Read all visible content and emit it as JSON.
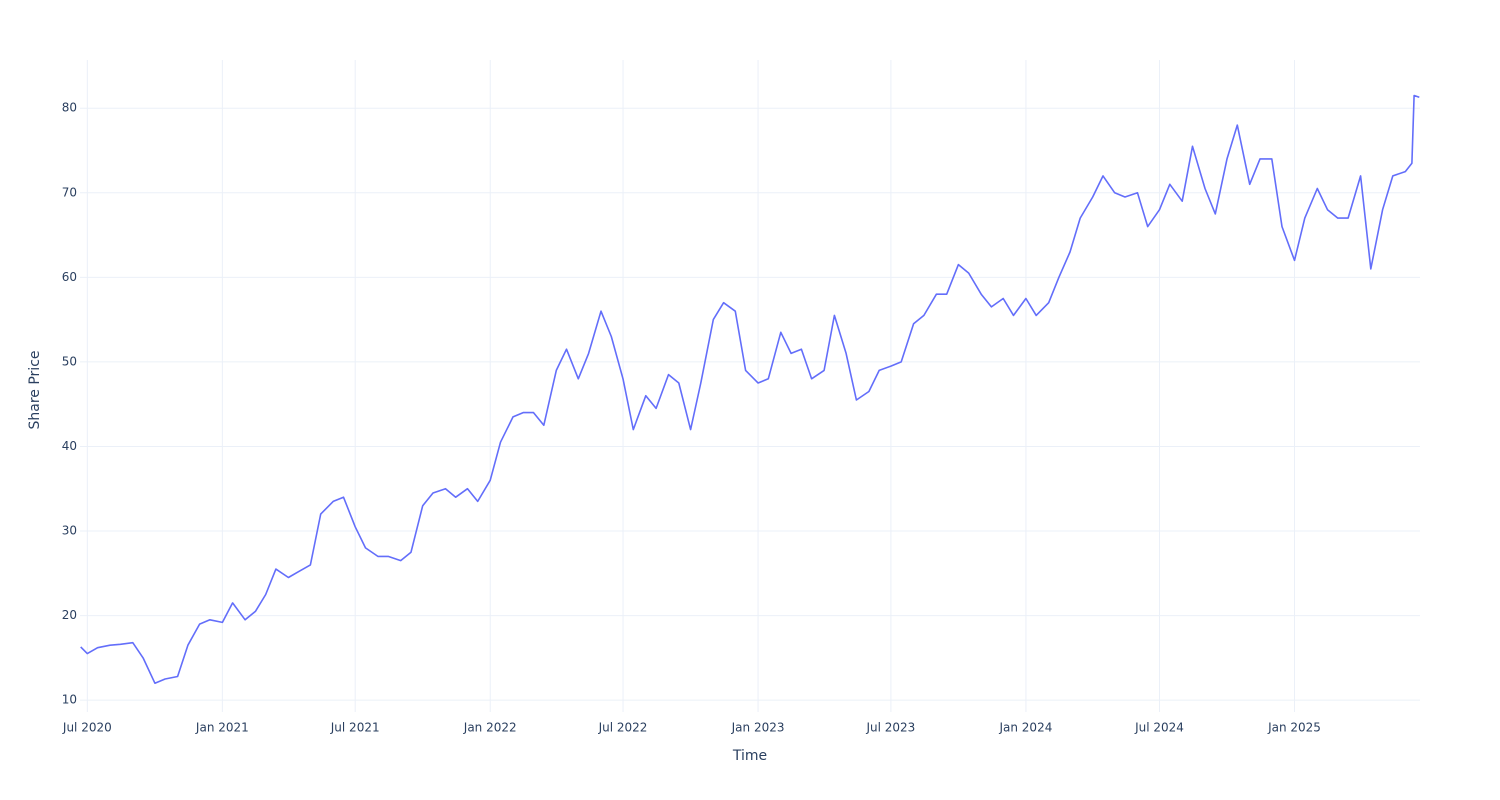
{
  "chart_data": {
    "type": "line",
    "x_label": "Time",
    "y_label": "Share Price",
    "x": [
      "2020-06-22",
      "2020-07-01",
      "2020-07-15",
      "2020-08-01",
      "2020-08-15",
      "2020-09-01",
      "2020-09-15",
      "2020-10-01",
      "2020-10-15",
      "2020-11-01",
      "2020-11-15",
      "2020-12-01",
      "2020-12-15",
      "2021-01-01",
      "2021-01-15",
      "2021-02-01",
      "2021-02-15",
      "2021-03-01",
      "2021-03-15",
      "2021-04-01",
      "2021-04-15",
      "2021-05-01",
      "2021-05-15",
      "2021-06-01",
      "2021-06-15",
      "2021-07-01",
      "2021-07-15",
      "2021-08-01",
      "2021-08-15",
      "2021-09-01",
      "2021-09-15",
      "2021-10-01",
      "2021-10-15",
      "2021-11-01",
      "2021-11-15",
      "2021-12-01",
      "2021-12-15",
      "2022-01-01",
      "2022-01-15",
      "2022-02-01",
      "2022-02-15",
      "2022-03-01",
      "2022-03-15",
      "2022-04-01",
      "2022-04-15",
      "2022-05-01",
      "2022-05-15",
      "2022-06-01",
      "2022-06-15",
      "2022-07-01",
      "2022-07-15",
      "2022-08-01",
      "2022-08-15",
      "2022-09-01",
      "2022-09-15",
      "2022-10-01",
      "2022-10-15",
      "2022-11-01",
      "2022-11-15",
      "2022-12-01",
      "2022-12-15",
      "2023-01-01",
      "2023-01-15",
      "2023-02-01",
      "2023-02-15",
      "2023-03-01",
      "2023-03-15",
      "2023-04-01",
      "2023-04-15",
      "2023-05-01",
      "2023-05-15",
      "2023-06-01",
      "2023-06-15",
      "2023-07-01",
      "2023-07-15",
      "2023-08-01",
      "2023-08-15",
      "2023-09-01",
      "2023-09-15",
      "2023-10-01",
      "2023-10-15",
      "2023-11-01",
      "2023-11-15",
      "2023-12-01",
      "2023-12-15",
      "2024-01-01",
      "2024-01-15",
      "2024-02-01",
      "2024-02-15",
      "2024-03-01",
      "2024-03-15",
      "2024-04-01",
      "2024-04-15",
      "2024-05-01",
      "2024-05-15",
      "2024-06-01",
      "2024-06-15",
      "2024-07-01",
      "2024-07-15",
      "2024-08-01",
      "2024-08-15",
      "2024-09-01",
      "2024-09-15",
      "2024-10-01",
      "2024-10-15",
      "2024-11-01",
      "2024-11-15",
      "2024-12-01",
      "2024-12-15",
      "2025-01-01",
      "2025-01-15",
      "2025-02-01",
      "2025-02-15",
      "2025-03-01",
      "2025-03-15",
      "2025-04-01",
      "2025-04-15",
      "2025-05-01",
      "2025-05-15",
      "2025-06-01",
      "2025-06-10",
      "2025-06-13",
      "2025-06-20"
    ],
    "values": [
      16.3,
      15.5,
      16.2,
      16.5,
      16.6,
      16.8,
      15,
      12,
      12.5,
      12.8,
      16.5,
      19,
      19.5,
      19.2,
      21.5,
      19.5,
      20.5,
      22.5,
      25.5,
      24.5,
      25.2,
      26,
      32,
      33.5,
      34,
      30.5,
      28,
      27,
      27,
      26.5,
      27.5,
      33,
      34.5,
      35,
      34,
      35,
      33.5,
      36,
      40.5,
      43.5,
      44,
      44,
      42.5,
      49,
      51.5,
      48,
      51,
      56,
      53,
      48,
      42,
      46,
      44.5,
      48.5,
      47.5,
      42,
      47.5,
      55,
      57,
      56,
      49,
      47.5,
      48,
      53.5,
      51,
      51.5,
      48,
      49,
      55.5,
      51,
      45.5,
      46.5,
      49,
      49.5,
      50,
      54.5,
      55.5,
      58,
      58,
      61.5,
      60.5,
      58,
      56.5,
      57.5,
      55.5,
      57.5,
      55.5,
      57,
      60,
      63,
      67,
      69.5,
      72,
      70,
      69.5,
      70,
      66,
      68,
      71,
      69,
      75.5,
      70.5,
      67.5,
      74,
      78,
      71,
      74,
      74,
      66,
      62,
      67,
      70.5,
      68,
      67,
      67,
      72,
      61,
      68,
      72,
      72.5,
      73.5,
      81.5,
      81.3
    ],
    "color": "#636efa",
    "xlim": [
      "2020-06-21",
      "2025-06-21"
    ],
    "xticks": [
      {
        "value": "2020-07-01",
        "label": "Jul 2020"
      },
      {
        "value": "2021-01-01",
        "label": "Jan 2021"
      },
      {
        "value": "2021-07-01",
        "label": "Jul 2021"
      },
      {
        "value": "2022-01-01",
        "label": "Jan 2022"
      },
      {
        "value": "2022-07-01",
        "label": "Jul 2022"
      },
      {
        "value": "2023-01-01",
        "label": "Jan 2023"
      },
      {
        "value": "2023-07-01",
        "label": "Jul 2023"
      },
      {
        "value": "2024-01-01",
        "label": "Jan 2024"
      },
      {
        "value": "2024-07-01",
        "label": "Jul 2024"
      },
      {
        "value": "2025-01-01",
        "label": "Jan 2025"
      }
    ],
    "ylim": [
      8.6,
      85.7
    ],
    "yticks": [
      10,
      20,
      30,
      40,
      50,
      60,
      70,
      80
    ],
    "grid": true
  }
}
